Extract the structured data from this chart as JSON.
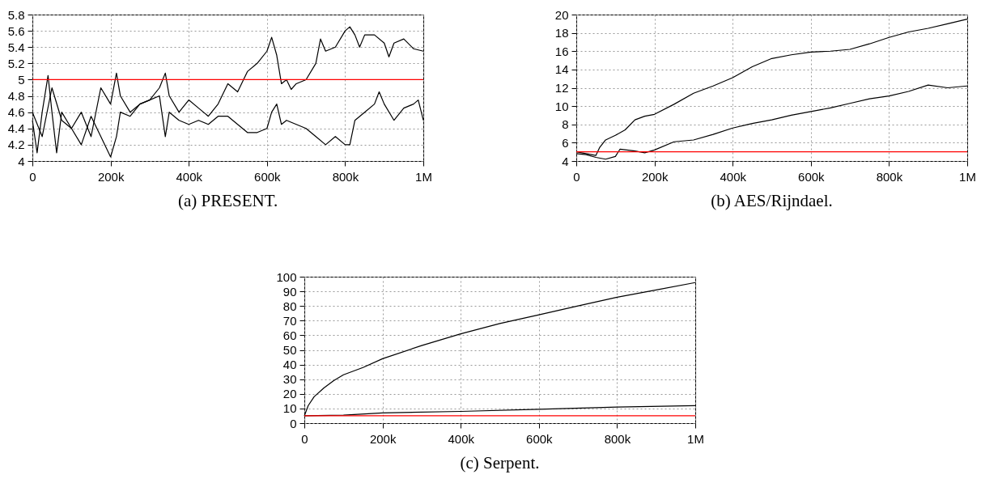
{
  "chart_data": [
    {
      "type": "line",
      "title": "(a) PRESENT.",
      "xlim": [
        0,
        1000000
      ],
      "xticks": [
        {
          "value": 0,
          "label": "0"
        },
        {
          "value": 200000,
          "label": "200k"
        },
        {
          "value": 400000,
          "label": "400k"
        },
        {
          "value": 600000,
          "label": "600k"
        },
        {
          "value": 800000,
          "label": "800k"
        },
        {
          "value": 1000000,
          "label": "1M"
        }
      ],
      "ylim": [
        4,
        5.8
      ],
      "yticks": [
        4,
        4.2,
        4.4,
        4.6,
        4.8,
        5,
        5.2,
        5.4,
        5.6,
        5.8
      ],
      "grid": true,
      "ref_lines": [
        {
          "axis": "y",
          "value": 5,
          "color": "#ff0000"
        }
      ],
      "series": [
        {
          "color": "#000000",
          "x": [
            0,
            25000,
            50000,
            75000,
            100000,
            125000,
            150000,
            175000,
            200000,
            215000,
            225000,
            250000,
            275000,
            300000,
            325000,
            340000,
            350000,
            375000,
            400000,
            425000,
            450000,
            475000,
            500000,
            525000,
            550000,
            575000,
            600000,
            612000,
            625000,
            637000,
            650000,
            662000,
            675000,
            700000,
            725000,
            737000,
            750000,
            775000,
            800000,
            812000,
            825000,
            837000,
            850000,
            875000,
            900000,
            912000,
            925000,
            950000,
            975000,
            1000000
          ],
          "values": [
            4.6,
            4.3,
            4.9,
            4.5,
            4.4,
            4.6,
            4.3,
            4.9,
            4.7,
            5.08,
            4.8,
            4.6,
            4.7,
            4.75,
            4.9,
            5.08,
            4.8,
            4.6,
            4.75,
            4.65,
            4.55,
            4.7,
            4.95,
            4.85,
            5.1,
            5.2,
            5.35,
            5.52,
            5.3,
            4.95,
            5.0,
            4.88,
            4.95,
            5.0,
            5.2,
            5.5,
            5.35,
            5.4,
            5.6,
            5.65,
            5.55,
            5.4,
            5.55,
            5.55,
            5.45,
            5.28,
            5.45,
            5.5,
            5.38,
            5.35
          ]
        },
        {
          "color": "#000000",
          "x": [
            0,
            12000,
            25000,
            40000,
            50000,
            62000,
            75000,
            100000,
            125000,
            150000,
            175000,
            200000,
            215000,
            225000,
            250000,
            275000,
            300000,
            325000,
            340000,
            350000,
            375000,
            400000,
            425000,
            450000,
            475000,
            500000,
            525000,
            550000,
            575000,
            600000,
            612000,
            625000,
            637000,
            650000,
            675000,
            700000,
            725000,
            750000,
            775000,
            800000,
            812000,
            825000,
            850000,
            875000,
            887000,
            900000,
            925000,
            950000,
            975000,
            987000,
            1000000
          ],
          "values": [
            4.5,
            4.1,
            4.6,
            5.05,
            4.6,
            4.1,
            4.6,
            4.4,
            4.2,
            4.55,
            4.3,
            4.05,
            4.3,
            4.6,
            4.55,
            4.7,
            4.75,
            4.8,
            4.3,
            4.6,
            4.5,
            4.45,
            4.5,
            4.45,
            4.55,
            4.55,
            4.45,
            4.35,
            4.35,
            4.4,
            4.6,
            4.7,
            4.45,
            4.5,
            4.45,
            4.4,
            4.3,
            4.2,
            4.3,
            4.2,
            4.2,
            4.5,
            4.6,
            4.7,
            4.85,
            4.7,
            4.5,
            4.65,
            4.7,
            4.75,
            4.5
          ]
        }
      ]
    },
    {
      "type": "line",
      "title": "(b) AES/Rijndael.",
      "xlim": [
        0,
        1000000
      ],
      "xticks": [
        {
          "value": 0,
          "label": "0"
        },
        {
          "value": 200000,
          "label": "200k"
        },
        {
          "value": 400000,
          "label": "400k"
        },
        {
          "value": 600000,
          "label": "600k"
        },
        {
          "value": 800000,
          "label": "800k"
        },
        {
          "value": 1000000,
          "label": "1M"
        }
      ],
      "ylim": [
        4,
        20
      ],
      "yticks": [
        4,
        6,
        8,
        10,
        12,
        14,
        16,
        18,
        20
      ],
      "grid": true,
      "ref_lines": [
        {
          "axis": "y",
          "value": 5,
          "color": "#ff0000"
        }
      ],
      "series": [
        {
          "color": "#000000",
          "x": [
            0,
            25000,
            50000,
            60000,
            75000,
            100000,
            125000,
            150000,
            175000,
            200000,
            250000,
            300000,
            350000,
            400000,
            450000,
            500000,
            550000,
            600000,
            650000,
            700000,
            750000,
            800000,
            850000,
            900000,
            950000,
            1000000
          ],
          "values": [
            5,
            4.8,
            4.6,
            5.5,
            6.3,
            6.8,
            7.4,
            8.5,
            8.9,
            9.1,
            10.2,
            11.4,
            12.2,
            13.1,
            14.3,
            15.2,
            15.6,
            15.9,
            16,
            16.2,
            16.8,
            17.5,
            18.1,
            18.5,
            19,
            19.5
          ]
        },
        {
          "color": "#000000",
          "x": [
            0,
            25000,
            50000,
            75000,
            100000,
            112000,
            150000,
            175000,
            200000,
            250000,
            300000,
            350000,
            400000,
            450000,
            500000,
            550000,
            600000,
            650000,
            700000,
            750000,
            800000,
            850000,
            900000,
            950000,
            1000000
          ],
          "values": [
            4.8,
            4.7,
            4.4,
            4.2,
            4.5,
            5.3,
            5.1,
            4.9,
            5.2,
            6.1,
            6.3,
            6.9,
            7.6,
            8.1,
            8.5,
            9,
            9.4,
            9.8,
            10.3,
            10.8,
            11.1,
            11.6,
            12.3,
            12,
            12.2
          ]
        }
      ]
    },
    {
      "type": "line",
      "title": "(c) Serpent.",
      "xlim": [
        0,
        1000000
      ],
      "xticks": [
        {
          "value": 0,
          "label": "0"
        },
        {
          "value": 200000,
          "label": "200k"
        },
        {
          "value": 400000,
          "label": "400k"
        },
        {
          "value": 600000,
          "label": "600k"
        },
        {
          "value": 800000,
          "label": "800k"
        },
        {
          "value": 1000000,
          "label": "1M"
        }
      ],
      "ylim": [
        0,
        100
      ],
      "yticks": [
        0,
        10,
        20,
        30,
        40,
        50,
        60,
        70,
        80,
        90,
        100
      ],
      "grid": true,
      "ref_lines": [
        {
          "axis": "y",
          "value": 5,
          "color": "#ff0000"
        }
      ],
      "series": [
        {
          "color": "#000000",
          "x": [
            0,
            10000,
            25000,
            50000,
            75000,
            100000,
            150000,
            200000,
            300000,
            400000,
            500000,
            600000,
            700000,
            800000,
            900000,
            1000000
          ],
          "values": [
            5,
            12,
            18,
            24,
            29,
            33,
            38,
            44,
            53,
            61,
            68,
            74,
            80,
            86,
            91,
            96
          ]
        },
        {
          "color": "#000000",
          "x": [
            0,
            100000,
            200000,
            400000,
            600000,
            800000,
            1000000
          ],
          "values": [
            5,
            5.5,
            7,
            8,
            9.5,
            11,
            12
          ]
        }
      ]
    }
  ]
}
